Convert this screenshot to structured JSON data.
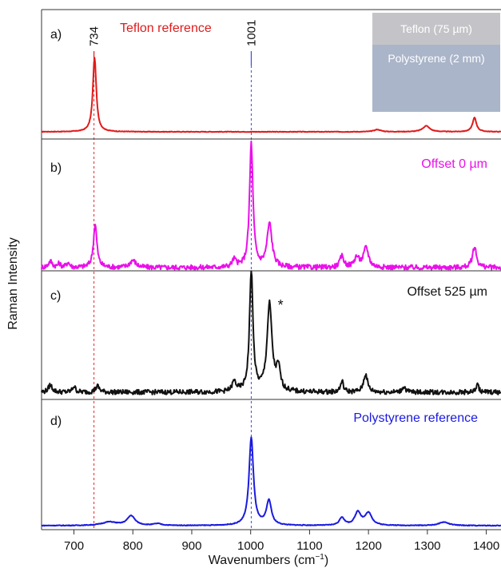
{
  "chart_data": {
    "type": "line",
    "ylabel": "Raman Intensity",
    "xlabel": "Wavenumbers (cm",
    "xlabel_sup": "−1",
    "xlabel_close": ")",
    "xlim": [
      645,
      1425
    ],
    "x_ticks": [
      700,
      800,
      900,
      1000,
      1100,
      1200,
      1300,
      1400
    ],
    "reference_lines": [
      {
        "x": 734,
        "color": "#e8262a"
      },
      {
        "x": 1001,
        "color": "#3a4fd8"
      }
    ],
    "panels": [
      {
        "label": "a)",
        "series_name": "Teflon reference",
        "color": "#e01b1b",
        "peak_labels": [
          {
            "x": 734,
            "text": "734",
            "color": "#e01b1b"
          },
          {
            "x": 1001,
            "text": "1001",
            "color": "#3a4fd8"
          }
        ],
        "peaks": [
          {
            "x": 735,
            "y": 1.0,
            "w": 3.5
          },
          {
            "x": 1215,
            "y": 0.03,
            "w": 7
          },
          {
            "x": 1298,
            "y": 0.08,
            "w": 7
          },
          {
            "x": 1380,
            "y": 0.19,
            "w": 4
          }
        ]
      },
      {
        "label": "b)",
        "series_name": "Offset 0 µm",
        "color": "#ea10ea",
        "peaks": [
          {
            "x": 660,
            "y": 0.05,
            "w": 4
          },
          {
            "x": 675,
            "y": 0.03,
            "w": 3
          },
          {
            "x": 690,
            "y": 0.04,
            "w": 3
          },
          {
            "x": 736,
            "y": 0.35,
            "w": 3.5
          },
          {
            "x": 800,
            "y": 0.06,
            "w": 6
          },
          {
            "x": 972,
            "y": 0.06,
            "w": 4
          },
          {
            "x": 1001,
            "y": 1.0,
            "w": 3.5
          },
          {
            "x": 1032,
            "y": 0.35,
            "w": 5
          },
          {
            "x": 1155,
            "y": 0.09,
            "w": 4
          },
          {
            "x": 1180,
            "y": 0.08,
            "w": 5
          },
          {
            "x": 1196,
            "y": 0.16,
            "w": 5
          },
          {
            "x": 1380,
            "y": 0.17,
            "w": 4
          }
        ]
      },
      {
        "label": "c)",
        "series_name": "Offset 525 µm",
        "color": "#111111",
        "annotation": "*",
        "peaks": [
          {
            "x": 660,
            "y": 0.06,
            "w": 4
          },
          {
            "x": 700,
            "y": 0.05,
            "w": 3
          },
          {
            "x": 740,
            "y": 0.05,
            "w": 4
          },
          {
            "x": 972,
            "y": 0.08,
            "w": 4
          },
          {
            "x": 1001,
            "y": 1.0,
            "w": 3.5
          },
          {
            "x": 1032,
            "y": 0.72,
            "w": 5
          },
          {
            "x": 1047,
            "y": 0.18,
            "w": 4
          },
          {
            "x": 1155,
            "y": 0.09,
            "w": 3
          },
          {
            "x": 1195,
            "y": 0.15,
            "w": 4
          },
          {
            "x": 1260,
            "y": 0.05,
            "w": 3
          },
          {
            "x": 1385,
            "y": 0.06,
            "w": 3
          }
        ]
      },
      {
        "label": "d)",
        "series_name": "Polystyrene reference",
        "color": "#1a1ae0",
        "peaks": [
          {
            "x": 760,
            "y": 0.04,
            "w": 15
          },
          {
            "x": 797,
            "y": 0.11,
            "w": 8
          },
          {
            "x": 842,
            "y": 0.02,
            "w": 8
          },
          {
            "x": 1001,
            "y": 1.0,
            "w": 4.5
          },
          {
            "x": 1031,
            "y": 0.28,
            "w": 5
          },
          {
            "x": 1155,
            "y": 0.09,
            "w": 5
          },
          {
            "x": 1182,
            "y": 0.15,
            "w": 6
          },
          {
            "x": 1200,
            "y": 0.14,
            "w": 7
          },
          {
            "x": 1328,
            "y": 0.04,
            "w": 10
          }
        ]
      }
    ],
    "inset": {
      "top_label": "Teflon (75 µm)",
      "bottom_label": "Polystyrene (2 mm)",
      "top_color": "#c4c4c8",
      "bottom_color": "#aab5c9"
    }
  }
}
